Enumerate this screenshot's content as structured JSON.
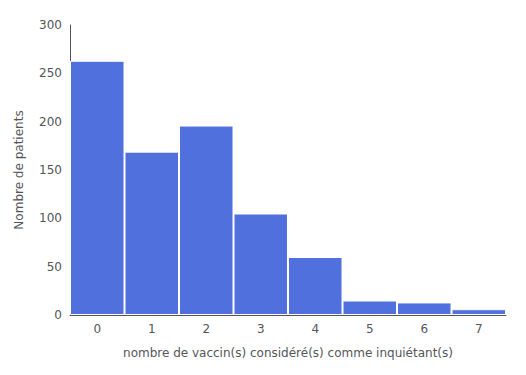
{
  "chart_data": {
    "type": "bar",
    "categories": [
      "0",
      "1",
      "2",
      "3",
      "4",
      "5",
      "6",
      "7"
    ],
    "values": [
      263,
      169,
      196,
      105,
      60,
      15,
      13,
      6
    ],
    "xlabel": "nombre de vaccin(s) considéré(s) comme inquiétant(s)",
    "ylabel": "Nombre de patients",
    "ylim": [
      0,
      300
    ],
    "yticks": [
      0,
      50,
      100,
      150,
      200,
      250,
      300
    ],
    "grid": false
  }
}
